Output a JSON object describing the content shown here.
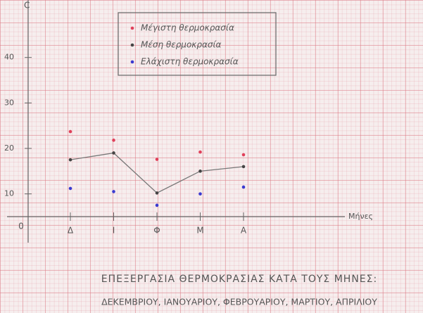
{
  "chart_data": {
    "type": "line",
    "title": "ΕΠΕΞΕΡΓΑΣΙΑ ΘΕΡΜΟΚΡΑΣΙΑΣ ΚΑΤΑ ΤΟΥΣ ΜΗΝΕΣ:",
    "subtitle": "ΔΕΚΕΜΒΡΙΟΥ, ΙΑΝΟΥΑΡΙΟΥ, ΦΕΒΡΟΥΑΡΙΟΥ, ΜΑΡΤΙΟΥ, ΑΠΡΙΛΙΟΥ",
    "x_label": "Μήνες",
    "y_label": "C",
    "origin_label": "0",
    "categories": [
      "Δ",
      "Ι",
      "Φ",
      "Μ",
      "Α"
    ],
    "series": [
      {
        "name": "Μέγιστη θερμοκρασία",
        "color": "#e0405a",
        "mode": "markers",
        "values": [
          23.7,
          21.8,
          17.6,
          19.2,
          18.6
        ]
      },
      {
        "name": "Μέση θερμοκρασία",
        "color": "#444444",
        "mode": "lines+markers",
        "values": [
          17.5,
          19.0,
          10.2,
          15.0,
          16.0
        ]
      },
      {
        "name": "Ελάχιστη θερμοκρασία",
        "color": "#3a3ad0",
        "mode": "markers",
        "values": [
          11.2,
          10.5,
          7.5,
          10.0,
          11.5
        ]
      }
    ],
    "ylim": [
      5,
      50
    ],
    "yticks": [
      10,
      20,
      30,
      40
    ]
  }
}
